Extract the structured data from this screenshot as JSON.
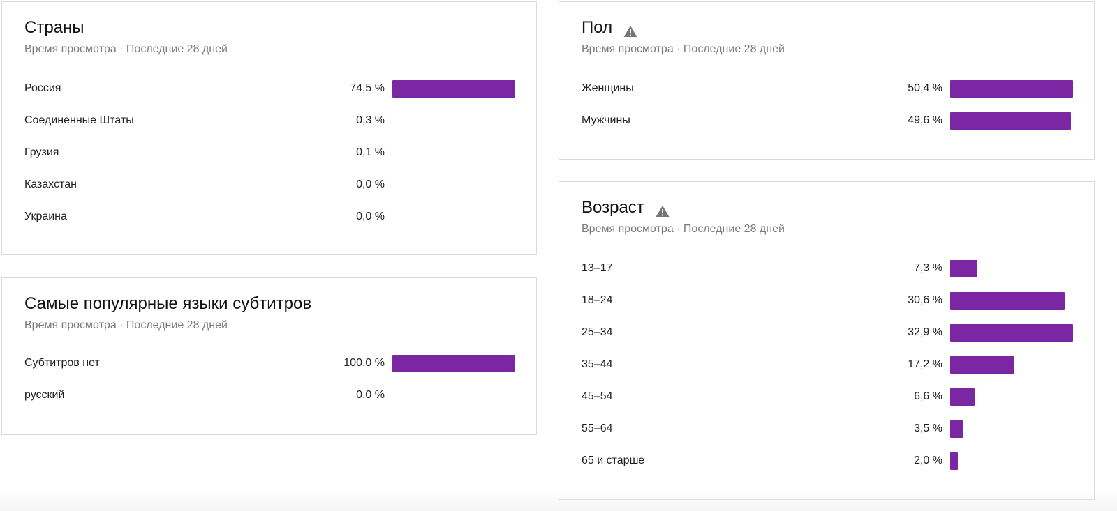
{
  "accent_color": "#7b27a3",
  "warning_icon_color": "#757575",
  "countries": {
    "title": "Страны",
    "subtitle": "Время просмотра · Последние 28 дней",
    "rows": [
      {
        "label": "Россия",
        "value": "74,5 %",
        "share": 74.5
      },
      {
        "label": "Соединенные Штаты",
        "value": "0,3 %",
        "share": 0.3
      },
      {
        "label": "Грузия",
        "value": "0,1 %",
        "share": 0.1
      },
      {
        "label": "Казахстан",
        "value": "0,0 %",
        "share": 0.0
      },
      {
        "label": "Украина",
        "value": "0,0 %",
        "share": 0.0
      }
    ]
  },
  "subtitles": {
    "title": "Самые популярные языки субтитров",
    "subtitle": "Время просмотра · Последние 28 дней",
    "rows": [
      {
        "label": "Субтитров нет",
        "value": "100,0 %",
        "share": 100.0
      },
      {
        "label": "русский",
        "value": "0,0 %",
        "share": 0.0
      }
    ]
  },
  "gender": {
    "title": "Пол",
    "icon": "warning-icon",
    "subtitle": "Время просмотра · Последние 28 дней",
    "rows": [
      {
        "label": "Женщины",
        "value": "50,4 %",
        "share": 50.4
      },
      {
        "label": "Мужчины",
        "value": "49,6 %",
        "share": 49.6
      }
    ]
  },
  "age": {
    "title": "Возраст",
    "icon": "warning-icon",
    "subtitle": "Время просмотра · Последние 28 дней",
    "rows": [
      {
        "label": "13–17",
        "value": "7,3 %",
        "share": 7.3
      },
      {
        "label": "18–24",
        "value": "30,6 %",
        "share": 30.6
      },
      {
        "label": "25–34",
        "value": "32,9 %",
        "share": 32.9
      },
      {
        "label": "35–44",
        "value": "17,2 %",
        "share": 17.2
      },
      {
        "label": "45–54",
        "value": "6,6 %",
        "share": 6.6
      },
      {
        "label": "55–64",
        "value": "3,5 %",
        "share": 3.5
      },
      {
        "label": "65 и старше",
        "value": "2,0 %",
        "share": 2.0
      }
    ]
  }
}
